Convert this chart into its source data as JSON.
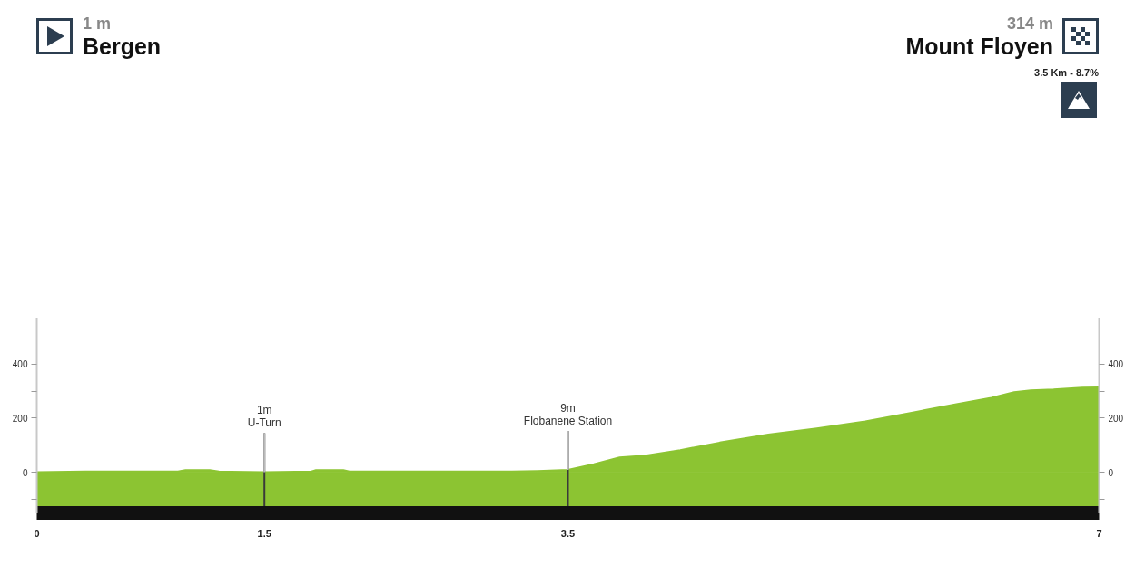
{
  "chart_data": {
    "type": "area",
    "color": "#8cc432",
    "x": [
      0,
      0.32,
      0.93,
      0.98,
      1.14,
      1.2,
      1.5,
      1.81,
      1.84,
      2.02,
      2.06,
      3.13,
      3.3,
      3.42,
      3.5,
      3.67,
      3.84,
      4.01,
      4.24,
      4.5,
      4.82,
      5.14,
      5.46,
      5.78,
      6.06,
      6.29,
      6.44,
      6.55,
      6.7,
      6.89,
      7
    ],
    "values": [
      1,
      3,
      3,
      8,
      8,
      3,
      1,
      3,
      8,
      8,
      3,
      3,
      5,
      7,
      9,
      30,
      55,
      62,
      82,
      110,
      140,
      162,
      188,
      222,
      252,
      275,
      296,
      303,
      306,
      313,
      314
    ],
    "xlim": [
      0,
      7
    ],
    "xticks": [
      0,
      1.5,
      3.5,
      7
    ],
    "ylim": [
      -150,
      570
    ],
    "yticks": [
      {
        "value": -100,
        "label": null
      },
      0,
      {
        "value": 100,
        "label": null
      },
      200,
      {
        "value": 300,
        "label": null
      },
      400
    ],
    "y2lim": [
      -150,
      570
    ],
    "y2ticks": [
      {
        "value": -100,
        "label": null
      },
      0,
      {
        "value": 100,
        "label": null
      },
      200,
      {
        "value": 300,
        "label": null
      },
      400
    ],
    "bands": [
      {
        "axis": "y",
        "from": -150,
        "to": 0,
        "color": "#8cc432"
      }
    ],
    "annotations": [
      "1 m",
      "Bergen",
      "314 m",
      "Mount Floyen",
      "3.5 Km - 8.7%",
      {
        "text": "1m\nU-Turn",
        "x": 1.5,
        "y": 1
      },
      {
        "text": "9m\nFlobanene Station",
        "x": 3.5,
        "y": 9
      }
    ]
  }
}
